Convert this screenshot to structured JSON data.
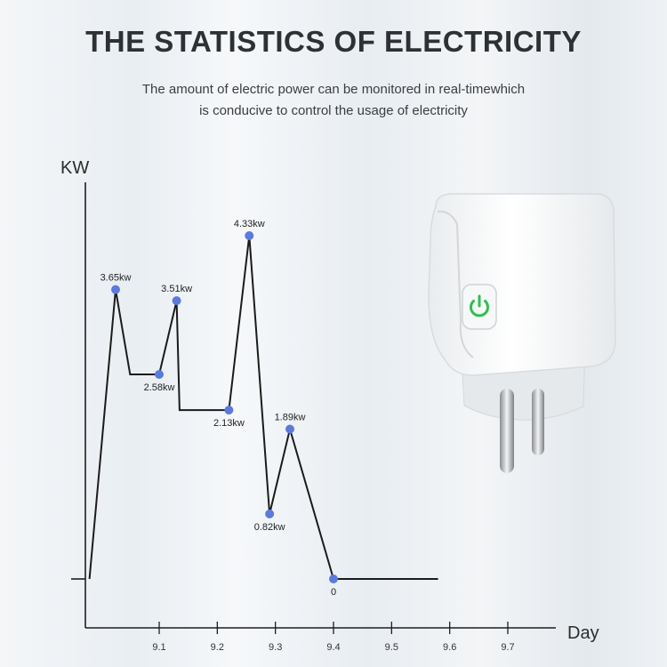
{
  "title": "THE STATISTICS OF ELECTRICITY",
  "subtitle_lines": [
    "The amount of electric power can be monitored in real-timewhich",
    "is conducive to control the usage of electricity"
  ],
  "colors": {
    "line": "#1b1b1b",
    "point": "#5b7bdc",
    "plug_led": "#2fbf4f"
  },
  "chart_data": {
    "type": "line",
    "title": "",
    "xlabel": "Day",
    "ylabel": "KW",
    "x_ticks": [
      9.1,
      9.2,
      9.3,
      9.4,
      9.5,
      9.6,
      9.7
    ],
    "x_tick_labels": [
      "9.1",
      "9.2",
      "9.3",
      "9.4",
      "9.5",
      "9.6",
      "9.7"
    ],
    "xlim": [
      8.98,
      9.7
    ],
    "ylim": [
      0,
      5.2
    ],
    "series": [
      {
        "x": [
          8.98,
          9.025,
          9.05,
          9.1,
          9.13,
          9.135,
          9.22,
          9.255,
          9.29,
          9.325,
          9.4,
          9.58
        ],
        "values": [
          0,
          3.65,
          2.58,
          2.58,
          3.51,
          2.13,
          2.13,
          4.33,
          0.82,
          1.89,
          0,
          0
        ]
      }
    ],
    "points": [
      {
        "x": 9.025,
        "y": 3.65,
        "label": "3.65kw",
        "label_pos": "above"
      },
      {
        "x": 9.1,
        "y": 2.58,
        "label": "2.58kw",
        "label_pos": "below"
      },
      {
        "x": 9.13,
        "y": 3.51,
        "label": "3.51kw",
        "label_pos": "above"
      },
      {
        "x": 9.22,
        "y": 2.13,
        "label": "2.13kw",
        "label_pos": "below"
      },
      {
        "x": 9.255,
        "y": 4.33,
        "label": "4.33kw",
        "label_pos": "above"
      },
      {
        "x": 9.29,
        "y": 0.82,
        "label": "0.82kw",
        "label_pos": "below"
      },
      {
        "x": 9.325,
        "y": 1.89,
        "label": "1.89kw",
        "label_pos": "above"
      },
      {
        "x": 9.4,
        "y": 0,
        "label": "0",
        "label_pos": "below"
      }
    ],
    "grid": false,
    "legend": "none"
  },
  "product_image": {
    "icon": "power-icon",
    "description_hidden": true
  }
}
